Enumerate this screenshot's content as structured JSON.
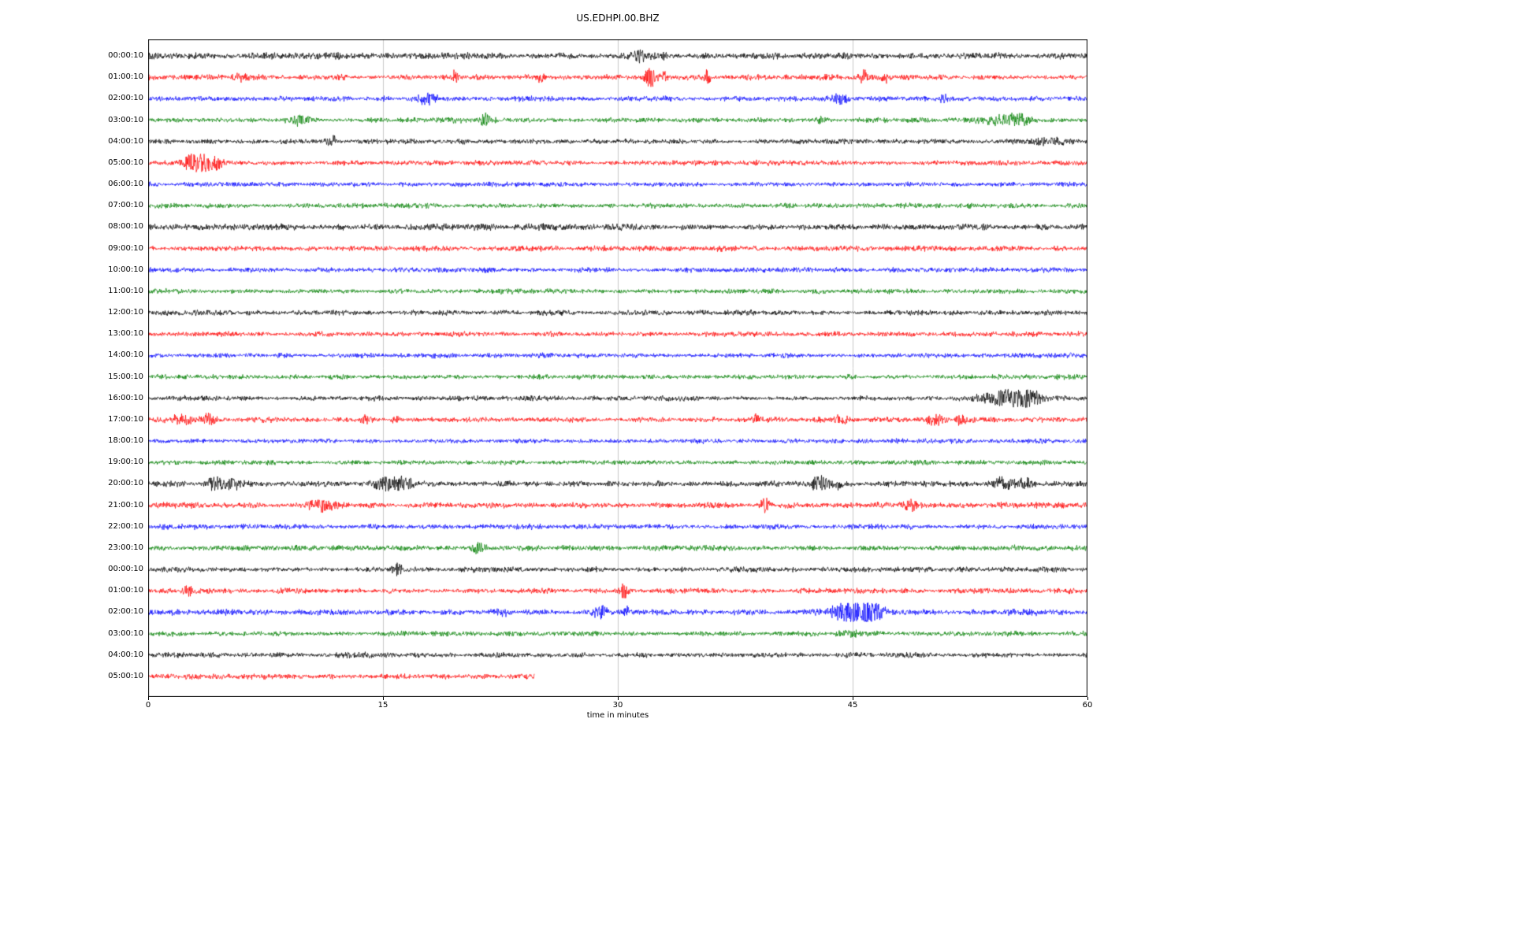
{
  "chart_data": {
    "type": "line",
    "variant": "seismogram-helicorder",
    "title": "US.EDHPI.00.BHZ",
    "xlabel": "time in minutes",
    "xlim": [
      0,
      60
    ],
    "x_ticks": [
      0,
      15,
      30,
      45,
      60
    ],
    "grid": true,
    "grid_lines_minutes": [
      15,
      30,
      45
    ],
    "grid_color": "#c9c9c9",
    "colors_cycle": [
      "#000000",
      "#ff0000",
      "#0000ff",
      "#008000"
    ],
    "legend": "none",
    "rows": [
      {
        "label": "00:00:10",
        "color": "#000000",
        "amp": 2.5,
        "events": [
          {
            "x": 31.5,
            "a": 1.8,
            "w": 0.4
          },
          {
            "x": 33.0,
            "a": 1.2,
            "w": 0.25
          }
        ]
      },
      {
        "label": "01:00:10",
        "color": "#ff0000",
        "amp": 2.1,
        "events": [
          {
            "x": 5.9,
            "a": 1.5,
            "w": 0.2
          },
          {
            "x": 19.6,
            "a": 3.5,
            "w": 0.12
          },
          {
            "x": 25.1,
            "a": 4.5,
            "w": 0.12
          },
          {
            "x": 32.1,
            "a": 9.0,
            "w": 0.22
          },
          {
            "x": 33.0,
            "a": 3.0,
            "w": 0.15
          },
          {
            "x": 35.7,
            "a": 4.5,
            "w": 0.15
          },
          {
            "x": 45.7,
            "a": 3.5,
            "w": 0.18
          },
          {
            "x": 47.1,
            "a": 2.5,
            "w": 0.12
          }
        ]
      },
      {
        "label": "02:00:10",
        "color": "#0000ff",
        "amp": 2.0,
        "events": [
          {
            "x": 17.9,
            "a": 2.8,
            "w": 0.45
          },
          {
            "x": 44.2,
            "a": 2.2,
            "w": 0.35
          },
          {
            "x": 50.8,
            "a": 2.0,
            "w": 0.18
          }
        ]
      },
      {
        "label": "03:00:10",
        "color": "#008000",
        "amp": 2.0,
        "events": [
          {
            "x": 9.6,
            "a": 2.2,
            "w": 0.5
          },
          {
            "x": 21.6,
            "a": 3.2,
            "w": 0.28
          },
          {
            "x": 43.0,
            "a": 1.4,
            "w": 0.2
          },
          {
            "x": 54.6,
            "a": 2.2,
            "w": 0.9
          },
          {
            "x": 55.6,
            "a": 1.8,
            "w": 0.4
          }
        ]
      },
      {
        "label": "04:00:10",
        "color": "#000000",
        "amp": 1.9,
        "events": [
          {
            "x": 11.8,
            "a": 2.2,
            "w": 0.18
          },
          {
            "x": 57.8,
            "a": 1.3,
            "w": 0.9
          }
        ]
      },
      {
        "label": "05:00:10",
        "color": "#ff0000",
        "amp": 1.9,
        "events": [
          {
            "x": 2.6,
            "a": 3.0,
            "w": 0.3
          },
          {
            "x": 3.4,
            "a": 6.5,
            "w": 0.55
          },
          {
            "x": 4.3,
            "a": 2.5,
            "w": 0.3
          }
        ]
      },
      {
        "label": "06:00:10",
        "color": "#0000ff",
        "amp": 1.8,
        "events": []
      },
      {
        "label": "07:00:10",
        "color": "#008000",
        "amp": 1.8,
        "events": []
      },
      {
        "label": "08:00:10",
        "color": "#000000",
        "amp": 2.4,
        "events": []
      },
      {
        "label": "09:00:10",
        "color": "#ff0000",
        "amp": 2.0,
        "events": []
      },
      {
        "label": "10:00:10",
        "color": "#0000ff",
        "amp": 1.9,
        "events": []
      },
      {
        "label": "11:00:10",
        "color": "#008000",
        "amp": 1.9,
        "events": []
      },
      {
        "label": "12:00:10",
        "color": "#000000",
        "amp": 2.0,
        "events": []
      },
      {
        "label": "13:00:10",
        "color": "#ff0000",
        "amp": 2.0,
        "events": []
      },
      {
        "label": "14:00:10",
        "color": "#0000ff",
        "amp": 1.8,
        "events": []
      },
      {
        "label": "15:00:10",
        "color": "#008000",
        "amp": 1.8,
        "events": []
      },
      {
        "label": "16:00:10",
        "color": "#000000",
        "amp": 2.0,
        "events": [
          {
            "x": 54.9,
            "a": 5.5,
            "w": 1.0
          },
          {
            "x": 56.3,
            "a": 3.5,
            "w": 0.5
          }
        ]
      },
      {
        "label": "17:00:10",
        "color": "#ff0000",
        "amp": 2.0,
        "events": [
          {
            "x": 2.1,
            "a": 2.2,
            "w": 0.5
          },
          {
            "x": 3.9,
            "a": 2.8,
            "w": 0.3
          },
          {
            "x": 13.8,
            "a": 2.8,
            "w": 0.12
          },
          {
            "x": 15.8,
            "a": 2.8,
            "w": 0.12
          },
          {
            "x": 38.9,
            "a": 2.8,
            "w": 0.12
          },
          {
            "x": 44.2,
            "a": 1.8,
            "w": 0.3
          },
          {
            "x": 50.2,
            "a": 2.2,
            "w": 0.35
          },
          {
            "x": 51.9,
            "a": 2.4,
            "w": 0.18
          }
        ]
      },
      {
        "label": "18:00:10",
        "color": "#0000ff",
        "amp": 1.8,
        "events": []
      },
      {
        "label": "19:00:10",
        "color": "#008000",
        "amp": 1.8,
        "events": []
      },
      {
        "label": "20:00:10",
        "color": "#000000",
        "amp": 2.2,
        "events": [
          {
            "x": 4.3,
            "a": 3.2,
            "w": 0.35
          },
          {
            "x": 5.4,
            "a": 2.6,
            "w": 0.3
          },
          {
            "x": 14.9,
            "a": 3.6,
            "w": 0.35
          },
          {
            "x": 16.0,
            "a": 4.5,
            "w": 0.3
          },
          {
            "x": 16.6,
            "a": 2.6,
            "w": 0.2
          },
          {
            "x": 42.9,
            "a": 4.0,
            "w": 0.35
          },
          {
            "x": 44.1,
            "a": 1.8,
            "w": 0.2
          },
          {
            "x": 54.6,
            "a": 3.2,
            "w": 0.4
          },
          {
            "x": 55.9,
            "a": 2.8,
            "w": 0.3
          }
        ]
      },
      {
        "label": "21:00:10",
        "color": "#ff0000",
        "amp": 2.3,
        "events": [
          {
            "x": 11.1,
            "a": 2.2,
            "w": 0.6
          },
          {
            "x": 39.4,
            "a": 3.2,
            "w": 0.18
          },
          {
            "x": 48.7,
            "a": 2.2,
            "w": 0.28
          }
        ]
      },
      {
        "label": "22:00:10",
        "color": "#0000ff",
        "amp": 2.0,
        "events": []
      },
      {
        "label": "23:00:10",
        "color": "#008000",
        "amp": 2.0,
        "events": [
          {
            "x": 21.1,
            "a": 2.2,
            "w": 0.35
          }
        ]
      },
      {
        "label": "00:00:10",
        "color": "#000000",
        "amp": 2.0,
        "events": [
          {
            "x": 15.9,
            "a": 3.2,
            "w": 0.18
          }
        ]
      },
      {
        "label": "01:00:10",
        "color": "#ff0000",
        "amp": 2.0,
        "events": [
          {
            "x": 2.6,
            "a": 3.2,
            "w": 0.18
          },
          {
            "x": 30.3,
            "a": 4.2,
            "w": 0.28
          }
        ]
      },
      {
        "label": "02:00:10",
        "color": "#0000ff",
        "amp": 2.2,
        "events": [
          {
            "x": 22.6,
            "a": 2.2,
            "w": 0.18
          },
          {
            "x": 28.9,
            "a": 2.8,
            "w": 0.28
          },
          {
            "x": 30.6,
            "a": 2.2,
            "w": 0.18
          },
          {
            "x": 44.9,
            "a": 6.5,
            "w": 0.6
          },
          {
            "x": 45.5,
            "a": 2.5,
            "w": 1.4
          },
          {
            "x": 46.1,
            "a": 4.5,
            "w": 0.45
          }
        ]
      },
      {
        "label": "03:00:10",
        "color": "#008000",
        "amp": 2.0,
        "events": [
          {
            "x": 45.1,
            "a": 1.3,
            "w": 0.5
          }
        ]
      },
      {
        "label": "04:00:10",
        "color": "#000000",
        "amp": 2.0,
        "events": []
      },
      {
        "label": "05:00:10",
        "color": "#ff0000",
        "amp": 2.0,
        "events": [],
        "end_minute": 24.7
      }
    ]
  }
}
